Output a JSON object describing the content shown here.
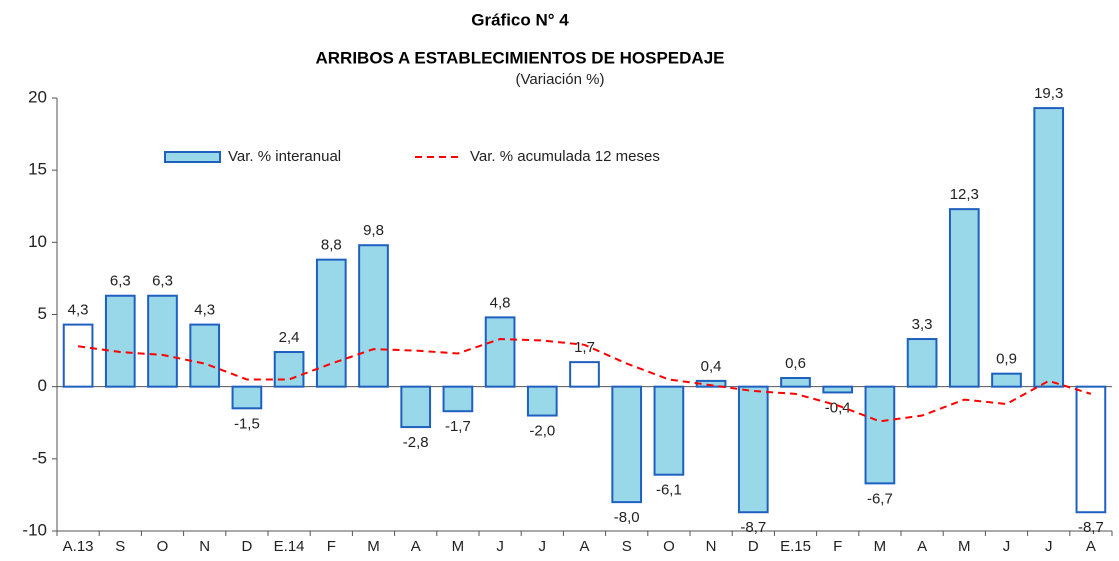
{
  "chart_data": {
    "type": "bar",
    "title": "Gráfico N° 4",
    "subtitle": "ARRIBOS A ESTABLECIMIENTOS DE HOSPEDAJE",
    "y_label": "(Variación %)",
    "categories": [
      "A.13",
      "S",
      "O",
      "N",
      "D",
      "E.14",
      "F",
      "M",
      "A",
      "M",
      "J",
      "J",
      "A",
      "S",
      "O",
      "N",
      "D",
      "E.15",
      "F",
      "M",
      "A",
      "M",
      "J",
      "J",
      "A"
    ],
    "series": [
      {
        "name": "Var. % interanual",
        "type": "bar",
        "color": "#99d8e8",
        "edgecolor": "#1f5fbf",
        "colors": [
          "#ffffff",
          "#99d8e8",
          "#99d8e8",
          "#99d8e8",
          "#99d8e8",
          "#99d8e8",
          "#99d8e8",
          "#99d8e8",
          "#99d8e8",
          "#99d8e8",
          "#99d8e8",
          "#99d8e8",
          "#ffffff",
          "#99d8e8",
          "#99d8e8",
          "#99d8e8",
          "#99d8e8",
          "#99d8e8",
          "#99d8e8",
          "#99d8e8",
          "#99d8e8",
          "#99d8e8",
          "#99d8e8",
          "#99d8e8",
          "#ffffff"
        ],
        "values": [
          4.3,
          6.3,
          6.3,
          4.3,
          -1.5,
          2.4,
          8.8,
          9.8,
          -2.8,
          -1.7,
          4.8,
          -2.0,
          1.7,
          -8.0,
          -6.1,
          0.4,
          -8.7,
          0.6,
          -0.4,
          -6.7,
          3.3,
          12.3,
          0.9,
          19.3,
          -8.7
        ],
        "value_labels": [
          "4,3",
          "6,3",
          "6,3",
          "4,3",
          "-1,5",
          "2,4",
          "8,8",
          "9,8",
          "-2,8",
          "-1,7",
          "4,8",
          "-2,0",
          "1,7",
          "-8,0",
          "-6,1",
          "0,4",
          "-8,7",
          "0,6",
          "-0,4",
          "-6,7",
          "3,3",
          "12,3",
          "0,9",
          "19,3",
          "-8,7"
        ]
      },
      {
        "name": "Var. % acumulada 12 meses",
        "type": "line",
        "color": "#ff0000",
        "dashed": true,
        "values": [
          2.8,
          2.4,
          2.2,
          1.6,
          0.5,
          0.5,
          1.6,
          2.6,
          2.5,
          2.3,
          3.3,
          3.2,
          2.9,
          1.6,
          0.5,
          0.1,
          -0.3,
          -0.5,
          -1.3,
          -2.4,
          -2.0,
          -0.9,
          -1.2,
          0.4,
          -0.5
        ]
      }
    ],
    "ylim": [
      -10,
      20
    ],
    "yticks": [
      -10,
      -5,
      0,
      5,
      10,
      15,
      20
    ],
    "grid": false
  }
}
